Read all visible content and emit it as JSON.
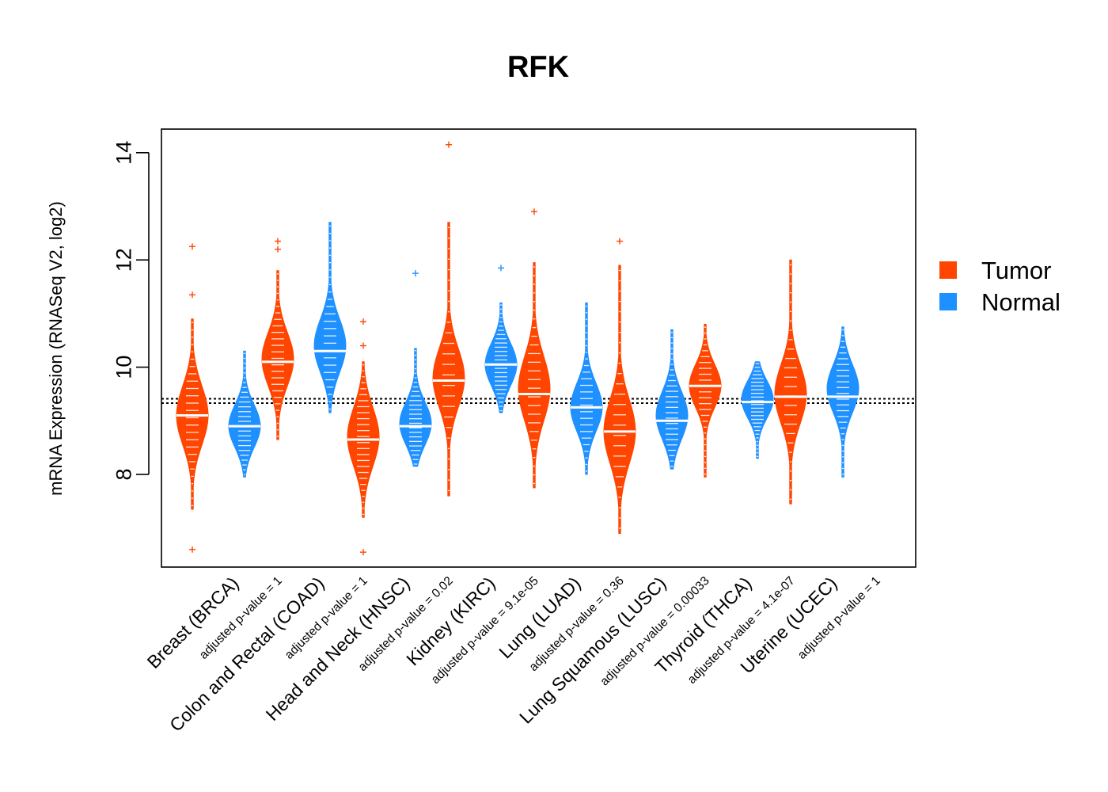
{
  "chart_data": {
    "type": "bean",
    "title": "RFK",
    "xlabel": "",
    "ylabel": "mRNA Expression (RNASeq V2, log2)",
    "ylim": [
      6.3,
      14.5
    ],
    "yticks": [
      8,
      10,
      12,
      14
    ],
    "reference_lines": [
      9.33,
      9.41
    ],
    "legend": {
      "placement": "right",
      "entries": [
        {
          "label": "Tumor",
          "color": "#FF4500"
        },
        {
          "label": "Normal",
          "color": "#1E90FF"
        }
      ]
    },
    "series_colors": {
      "tumor": "#FF4500",
      "normal": "#1E90FF"
    },
    "categories": [
      {
        "name": "Breast (BRCA)",
        "pvalue_label": "adjusted p-value = 1",
        "tumor": {
          "min": 7.35,
          "max": 10.9,
          "median": 9.1,
          "center": 9.1,
          "spread": 0.55,
          "outliers": [
            6.6,
            12.25,
            11.35
          ]
        },
        "normal": {
          "min": 7.95,
          "max": 10.3,
          "median": 8.9,
          "center": 8.9,
          "spread": 0.4,
          "outliers": []
        }
      },
      {
        "name": "Colon and Rectal (COAD)",
        "pvalue_label": "adjusted p-value = 1",
        "tumor": {
          "min": 8.65,
          "max": 11.8,
          "median": 10.1,
          "center": 10.15,
          "spread": 0.5,
          "outliers": [
            12.2,
            12.35
          ]
        },
        "normal": {
          "min": 9.15,
          "max": 12.7,
          "median": 10.3,
          "center": 10.4,
          "spread": 0.5,
          "outliers": []
        }
      },
      {
        "name": "Head and Neck (HNSC)",
        "pvalue_label": "adjusted p-value = 0.02",
        "tumor": {
          "min": 7.2,
          "max": 10.1,
          "median": 8.65,
          "center": 8.7,
          "spread": 0.55,
          "outliers": [
            6.55,
            10.85,
            10.4
          ]
        },
        "normal": {
          "min": 8.15,
          "max": 10.35,
          "median": 8.9,
          "center": 8.95,
          "spread": 0.4,
          "outliers": [
            11.75
          ]
        }
      },
      {
        "name": "Kidney (KIRC)",
        "pvalue_label": "adjusted p-value = 9.1e-05",
        "tumor": {
          "min": 7.6,
          "max": 12.7,
          "median": 9.75,
          "center": 9.8,
          "spread": 0.55,
          "outliers": [
            14.15
          ]
        },
        "normal": {
          "min": 9.15,
          "max": 11.2,
          "median": 10.05,
          "center": 10.05,
          "spread": 0.4,
          "outliers": [
            11.85
          ]
        }
      },
      {
        "name": "Lung (LUAD)",
        "pvalue_label": "adjusted p-value = 0.36",
        "tumor": {
          "min": 7.75,
          "max": 11.95,
          "median": 9.5,
          "center": 9.6,
          "spread": 0.6,
          "outliers": [
            12.9
          ]
        },
        "normal": {
          "min": 8.0,
          "max": 11.2,
          "median": 9.25,
          "center": 9.25,
          "spread": 0.45,
          "outliers": []
        }
      },
      {
        "name": "Lung Squamous (LUSC)",
        "pvalue_label": "adjusted p-value = 0.00033",
        "tumor": {
          "min": 6.9,
          "max": 11.9,
          "median": 8.8,
          "center": 8.8,
          "spread": 0.6,
          "outliers": [
            12.35
          ]
        },
        "normal": {
          "min": 8.1,
          "max": 10.7,
          "median": 9.0,
          "center": 9.1,
          "spread": 0.45,
          "outliers": []
        }
      },
      {
        "name": "Thyroid (THCA)",
        "pvalue_label": "adjusted p-value = 4.1e-07",
        "tumor": {
          "min": 7.95,
          "max": 10.8,
          "median": 9.65,
          "center": 9.65,
          "spread": 0.4,
          "outliers": []
        },
        "normal": {
          "min": 8.3,
          "max": 10.1,
          "median": 9.35,
          "center": 9.4,
          "spread": 0.35,
          "outliers": []
        }
      },
      {
        "name": "Uterine (UCEC)",
        "pvalue_label": "adjusted p-value = 1",
        "tumor": {
          "min": 7.45,
          "max": 12.0,
          "median": 9.45,
          "center": 9.5,
          "spread": 0.55,
          "outliers": []
        },
        "normal": {
          "min": 7.95,
          "max": 10.75,
          "median": 9.45,
          "center": 9.6,
          "spread": 0.45,
          "outliers": []
        }
      }
    ]
  }
}
